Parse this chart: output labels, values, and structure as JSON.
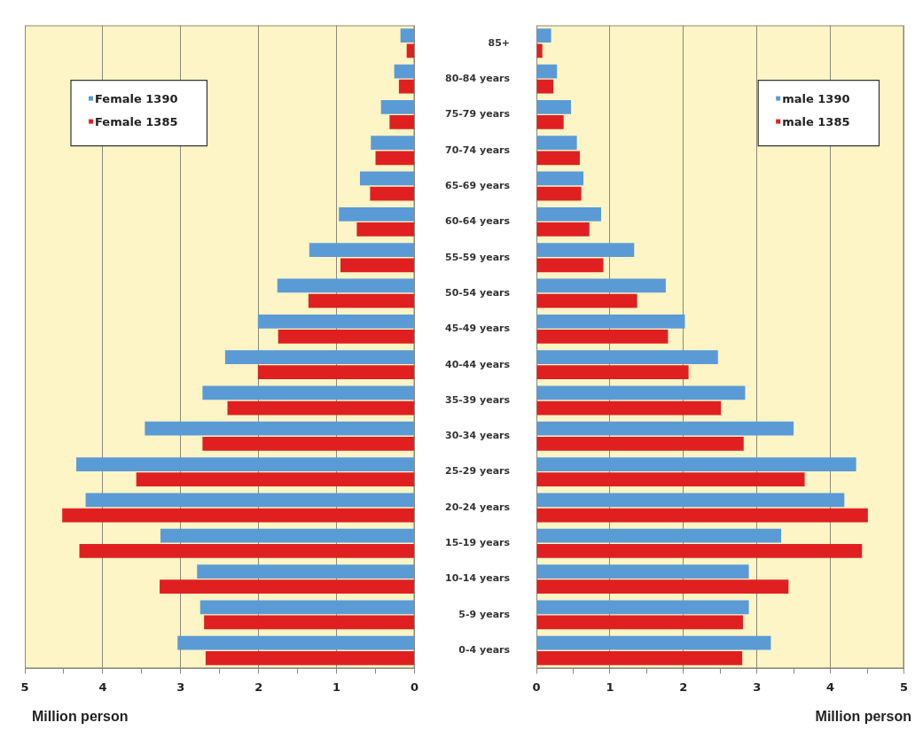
{
  "chart_data": [
    {
      "type": "bar",
      "orientation": "horizontal",
      "categories": [
        null,
        null,
        null,
        null,
        null,
        null,
        null,
        null,
        null,
        null,
        null,
        null,
        null,
        null,
        null,
        null,
        null,
        null
      ],
      "series": [
        {
          "name": "Female 1390",
          "color": "#5b9bd5",
          "values": [
            0.18,
            0.26,
            0.43,
            0.56,
            0.7,
            0.97,
            1.35,
            1.76,
            2.01,
            2.43,
            2.72,
            3.46,
            4.34,
            4.22,
            3.26,
            2.79,
            2.75,
            3.04
          ]
        },
        {
          "name": "Female 1385",
          "color": "#e02020",
          "values": [
            0.1,
            0.2,
            0.32,
            0.5,
            0.57,
            0.74,
            0.95,
            1.36,
            1.75,
            2.01,
            2.4,
            2.72,
            3.57,
            4.52,
            4.3,
            3.27,
            2.7,
            2.68
          ]
        }
      ],
      "xlim": [
        5,
        0
      ],
      "xticks": [
        5,
        {
          "value": 4.5,
          "label": null
        },
        4,
        {
          "value": 3.5,
          "label": null
        },
        3,
        {
          "value": 2.5,
          "label": null
        },
        2,
        {
          "value": 1.5,
          "label": null
        },
        1,
        {
          "value": 0.5,
          "label": null
        },
        0
      ],
      "xlabel": "Million person",
      "grid": "x",
      "legend": "top left",
      "tick_labels": "x"
    },
    {
      "type": "bar",
      "orientation": "horizontal",
      "categories": [
        "85+",
        "80-84 years",
        "75-79 years",
        "70-74 years",
        "65-69 years",
        "60-64 years",
        "55-59 years",
        "50-54 years",
        "45-49 years",
        "40-44 years",
        "35-39 years",
        "30-34 years",
        "25-29 years",
        "20-24 years",
        "15-19 years",
        "10-14 years",
        "5-9 years",
        "0-4 years"
      ],
      "series": [
        {
          "name": "male 1390",
          "color": "#5b9bd5",
          "values": [
            0.2,
            0.28,
            0.47,
            0.55,
            0.64,
            0.88,
            1.33,
            1.76,
            2.02,
            2.47,
            2.84,
            3.5,
            4.35,
            4.19,
            3.33,
            2.89,
            2.89,
            3.19
          ]
        },
        {
          "name": "male 1385",
          "color": "#e02020",
          "values": [
            0.08,
            0.23,
            0.37,
            0.59,
            0.61,
            0.72,
            0.91,
            1.37,
            1.79,
            2.07,
            2.51,
            2.82,
            3.65,
            4.51,
            4.43,
            3.43,
            2.81,
            2.8
          ]
        }
      ],
      "xlim": [
        0,
        5
      ],
      "xticks": [
        0,
        {
          "value": 0.5,
          "label": null
        },
        1,
        {
          "value": 1.5,
          "label": null
        },
        2,
        {
          "value": 2.5,
          "label": null
        },
        3,
        {
          "value": 3.5,
          "label": null
        },
        4,
        {
          "value": 4.5,
          "label": null
        },
        5
      ],
      "xlabel": "Million person",
      "grid": "x",
      "legend": "top right"
    }
  ]
}
